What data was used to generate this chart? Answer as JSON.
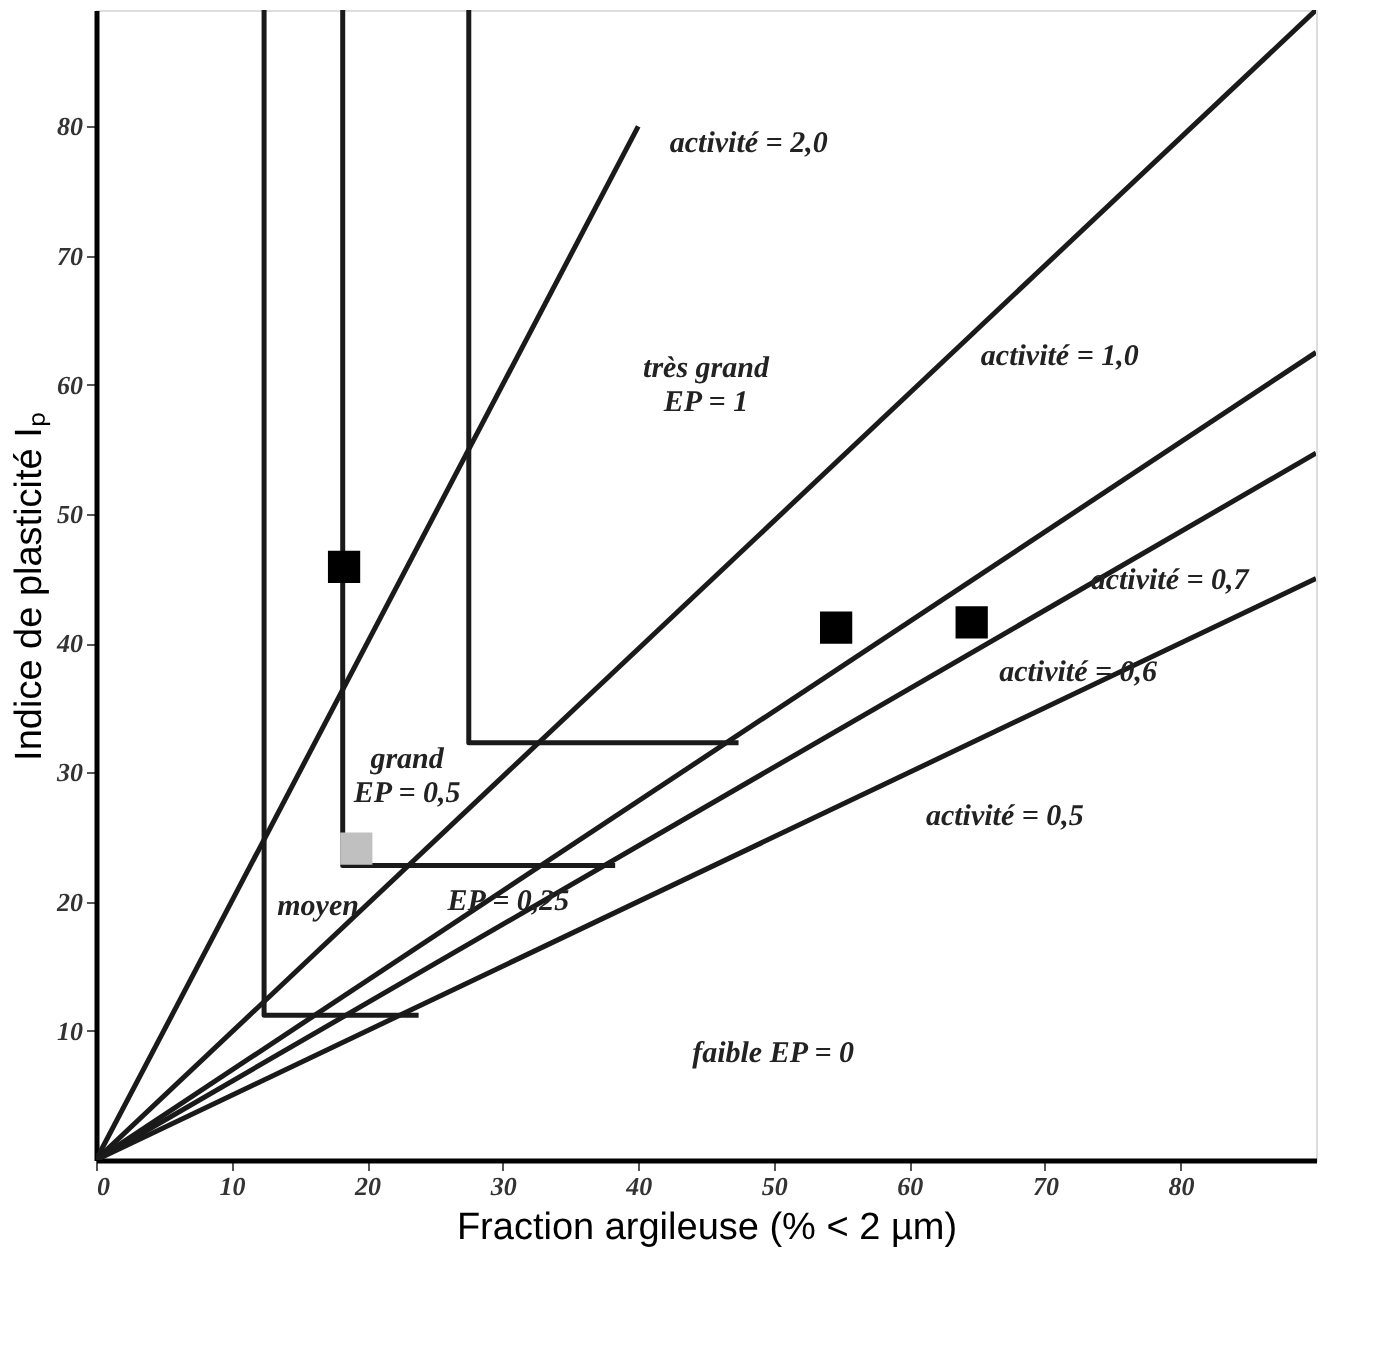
{
  "chart_data": {
    "type": "line",
    "xlabel": "Fraction argileuse (% < 2 µm)",
    "ylabel": "Indice de plasticité Iₚ",
    "xlim": [
      0,
      90
    ],
    "ylim": [
      0,
      89
    ],
    "xticks": [
      0,
      10,
      20,
      30,
      40,
      50,
      60,
      70,
      80
    ],
    "yticks": [
      10,
      20,
      30,
      40,
      50,
      60,
      70,
      80
    ],
    "grid": false,
    "series": [
      {
        "color": "#1a1a1a",
        "x": [
          0,
          40
        ],
        "values": [
          0,
          80
        ]
      },
      {
        "color": "#1a1a1a",
        "x": [
          0,
          90
        ],
        "values": [
          0,
          89
        ]
      },
      {
        "color": "#1a1a1a",
        "x": [
          0,
          90
        ],
        "values": [
          0,
          62.5
        ]
      },
      {
        "color": "#1a1a1a",
        "x": [
          0,
          90
        ],
        "values": [
          0,
          54.7
        ]
      },
      {
        "color": "#1a1a1a",
        "x": [
          0,
          90
        ],
        "values": [
          0,
          45
        ]
      },
      {
        "color": "#1a1a1a",
        "x": [
          12.4,
          12.4,
          23.8
        ],
        "values": [
          89,
          11.2,
          11.2
        ]
      },
      {
        "color": "#1a1a1a",
        "x": [
          18.2,
          18.2,
          38.3
        ],
        "values": [
          89,
          22.8,
          22.8
        ]
      },
      {
        "color": "#1a1a1a",
        "x": [
          27.5,
          27.5,
          47.4
        ],
        "values": [
          89,
          32.3,
          32.3
        ]
      },
      {
        "type": "scatter",
        "marker": "square",
        "color": "#000000",
        "x": [
          18.3,
          54.6,
          64.6
        ],
        "values": [
          45.9,
          41.2,
          41.6
        ]
      },
      {
        "type": "scatter",
        "marker": "square",
        "color": "#c0c0c0",
        "x": [
          19.2
        ],
        "values": [
          24.1
        ]
      }
    ],
    "annotations": [
      "activité = 2,0",
      "très grand\nEP = 1",
      "activité = 1,0",
      "activité = 0,7",
      "activité = 0,6",
      "activité = 0,5",
      "grand\nEP = 0,5",
      "moyen",
      "EP = 0,25",
      "faible EP = 0"
    ]
  }
}
